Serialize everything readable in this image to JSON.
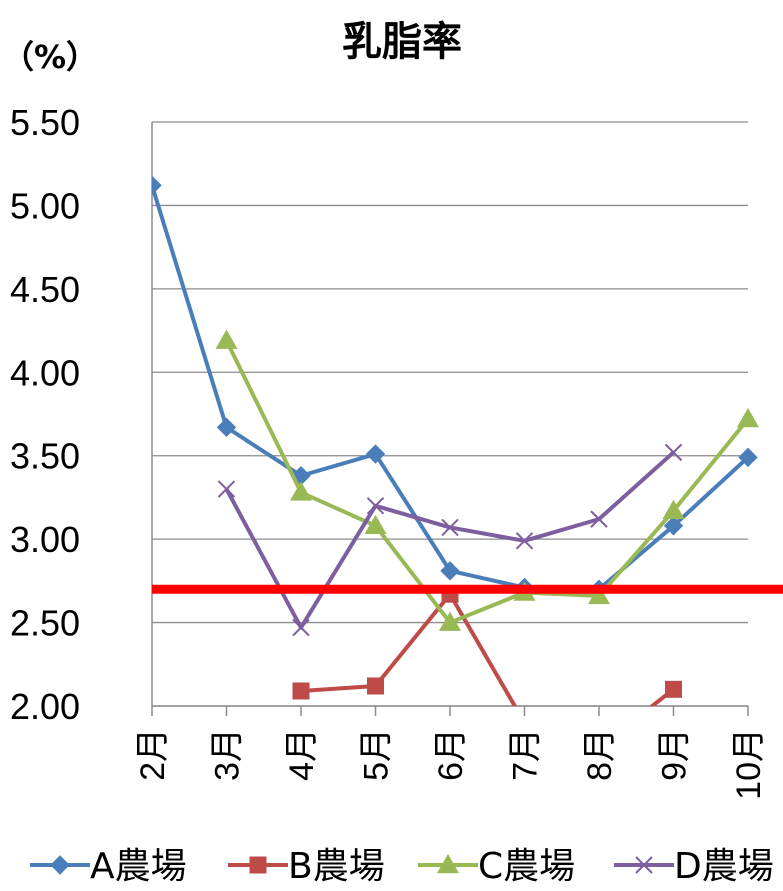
{
  "chart_data": {
    "type": "line",
    "title": "乳脂率",
    "ylabel": "（%）",
    "ylim": [
      2.0,
      5.5
    ],
    "yticks": [
      "5.50",
      "5.00",
      "4.50",
      "4.00",
      "3.50",
      "3.00",
      "2.50",
      "2.00"
    ],
    "categories": [
      "2月",
      "3月",
      "4月",
      "5月",
      "6月",
      "7月",
      "8月",
      "9月",
      "10月"
    ],
    "grid": true,
    "legend_position": "bottom",
    "reference_line": {
      "value": 2.7,
      "color": "#ff0000"
    },
    "series": [
      {
        "name": "A農場",
        "color": "#4a7ebb",
        "marker": "diamond",
        "values": [
          5.12,
          3.67,
          3.38,
          3.51,
          2.81,
          2.71,
          2.7,
          3.08,
          3.49
        ]
      },
      {
        "name": "B農場",
        "color": "#be4b48",
        "marker": "square",
        "values": [
          null,
          null,
          2.09,
          2.12,
          2.67,
          1.9,
          1.75,
          2.1,
          null
        ]
      },
      {
        "name": "C農場",
        "color": "#98b954",
        "marker": "triangle",
        "values": [
          null,
          4.19,
          3.28,
          3.08,
          2.5,
          2.68,
          2.66,
          3.17,
          3.72
        ]
      },
      {
        "name": "D農場",
        "color": "#7d5fa0",
        "marker": "x",
        "values": [
          null,
          3.3,
          2.47,
          3.2,
          3.07,
          2.99,
          3.12,
          3.52,
          null
        ]
      }
    ]
  }
}
